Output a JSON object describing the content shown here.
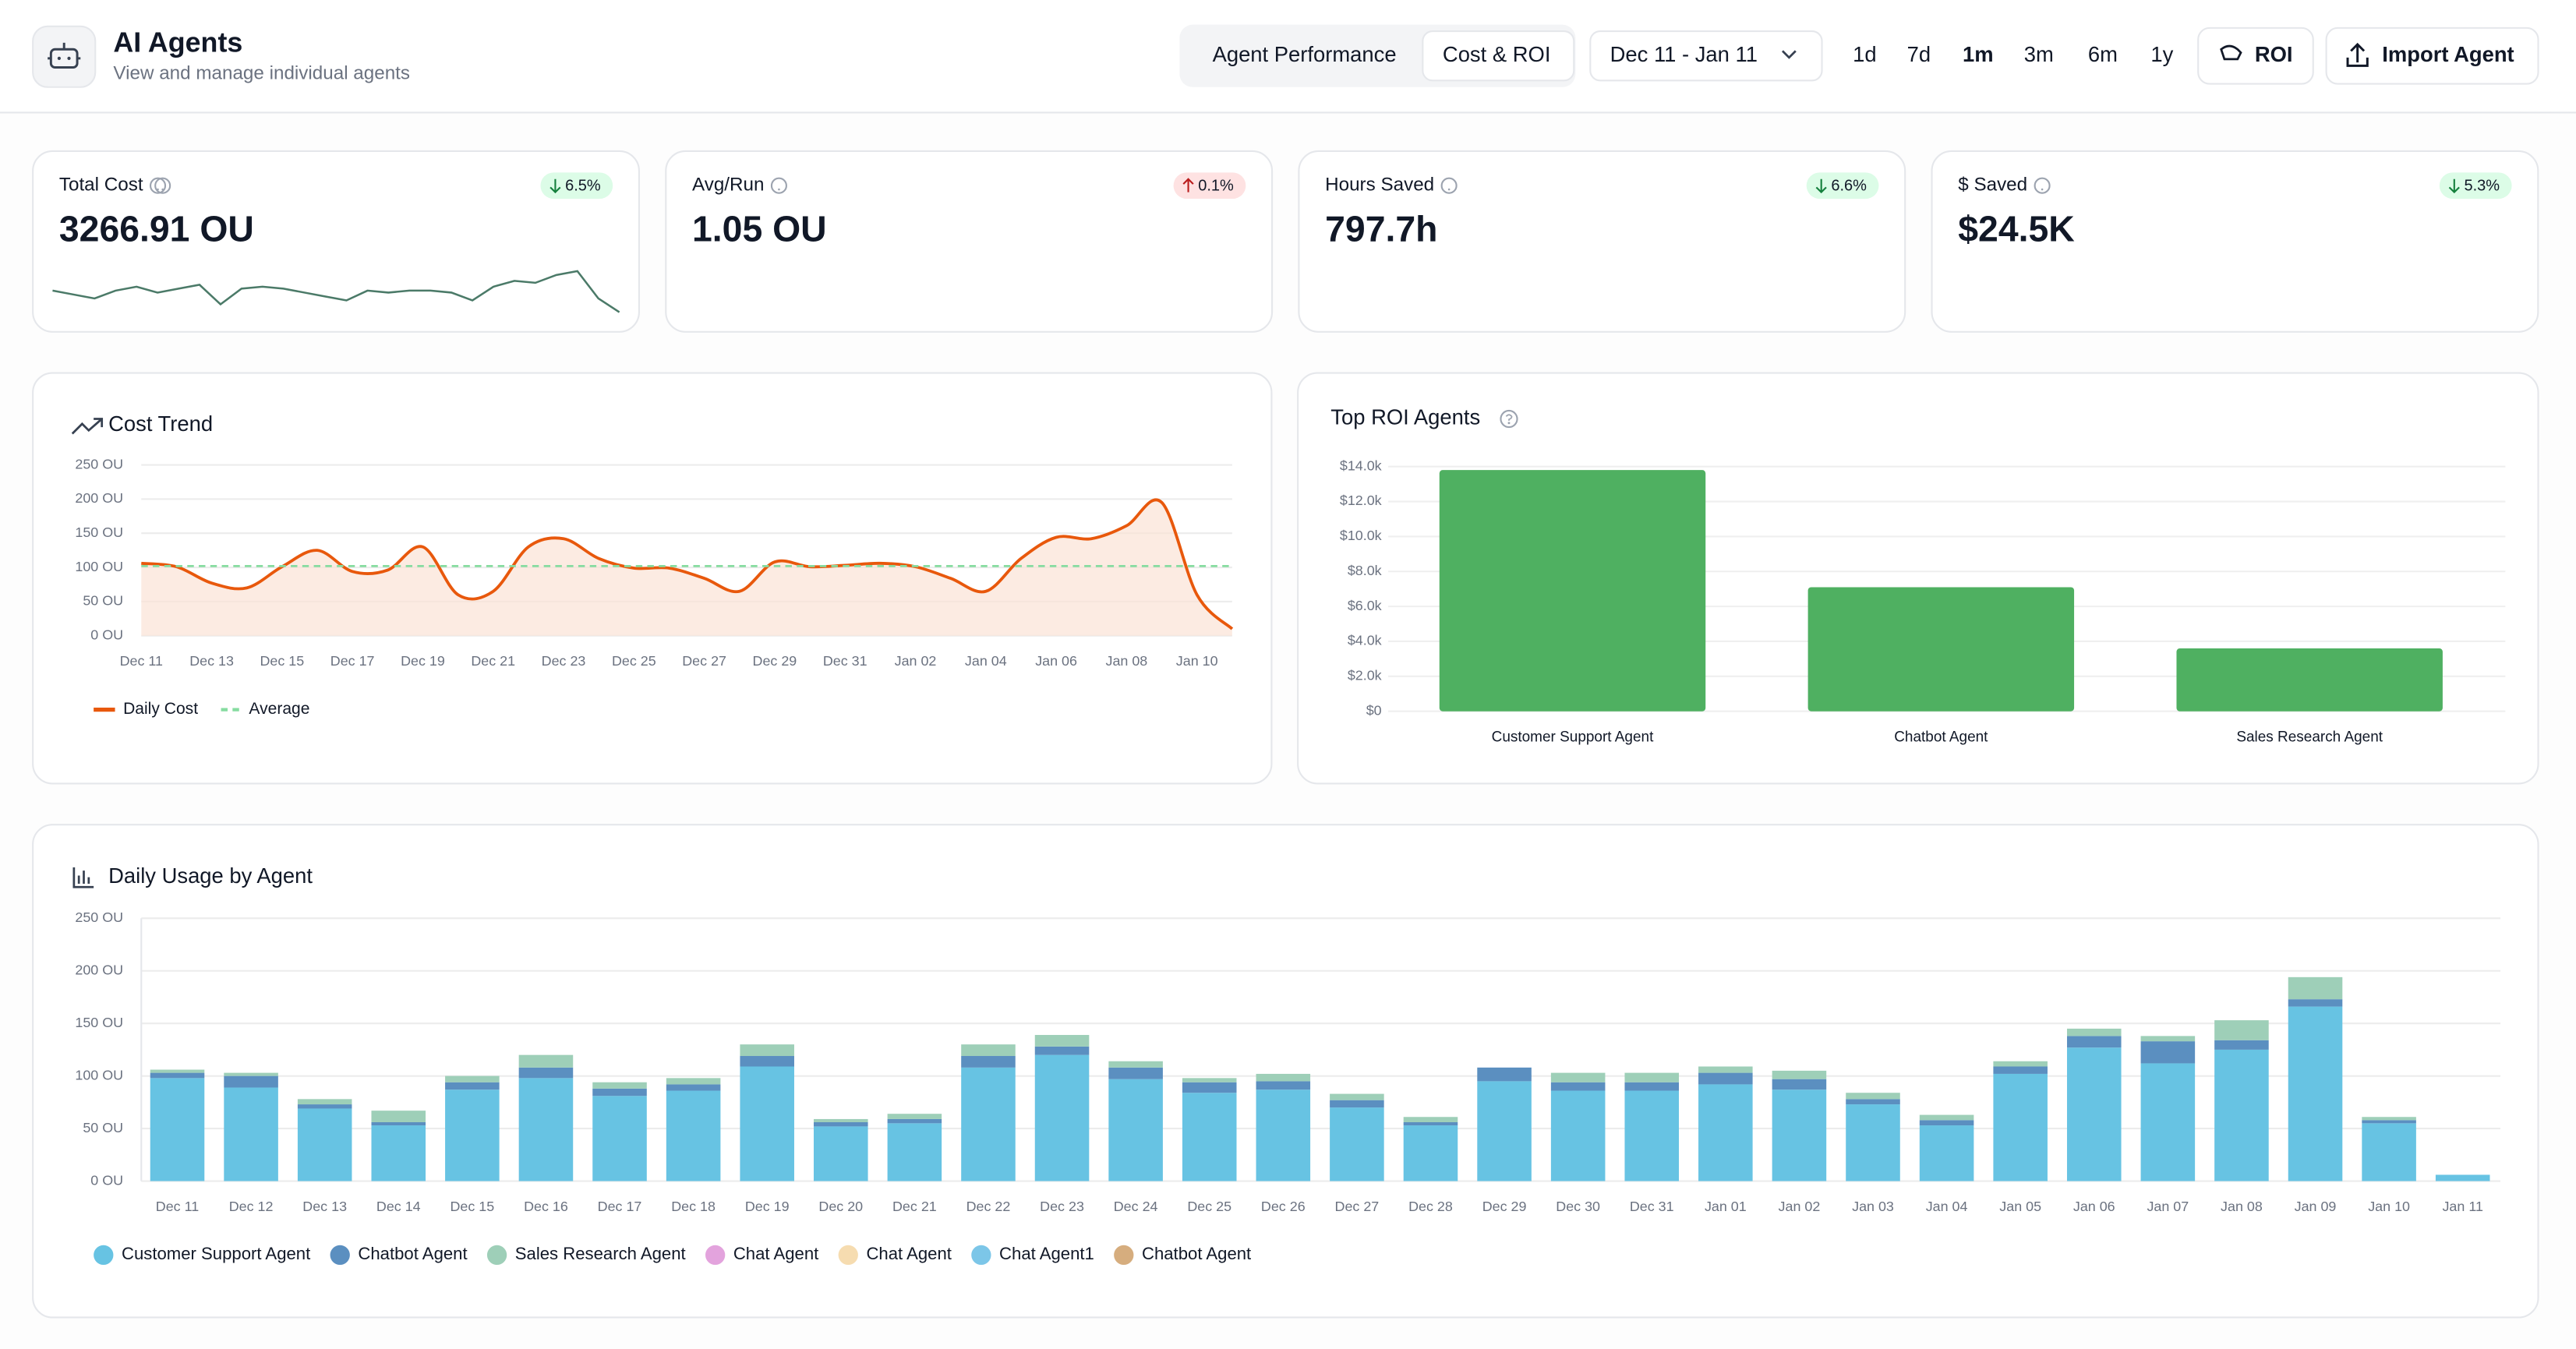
{
  "header": {
    "title": "AI Agents",
    "subtitle": "View and manage individual agents",
    "tabs": [
      "Agent Performance",
      "Cost & ROI"
    ],
    "active_tab_index": 1,
    "date_range": "Dec 11 - Jan 11",
    "ranges": [
      "1d",
      "7d",
      "1m",
      "3m",
      "6m",
      "1y"
    ],
    "active_range_index": 2,
    "buttons": [
      "ROI",
      "Import Agent"
    ]
  },
  "kpis": [
    {
      "label": "Total Cost",
      "value": "3266.91 OU",
      "change": "6.5%",
      "direction": "down"
    },
    {
      "label": "Avg/Run",
      "value": "1.05 OU",
      "change": "0.1%",
      "direction": "up"
    },
    {
      "label": "Hours Saved",
      "value": "797.7h",
      "change": "6.6%",
      "direction": "down"
    },
    {
      "label": "$ Saved",
      "value": "$24.5K",
      "change": "5.3%",
      "direction": "down"
    }
  ],
  "chart_data": [
    {
      "type": "sparkline",
      "color": "#4b7a68",
      "values": [
        14,
        12,
        10,
        14,
        16,
        13,
        15,
        17,
        7,
        15,
        16,
        15,
        13,
        11,
        9,
        14,
        13,
        14,
        14,
        13,
        9,
        16,
        19,
        18,
        22,
        24,
        10,
        3
      ]
    },
    {
      "type": "line",
      "title": "Cost Trend",
      "categories": [
        "Dec 11",
        null,
        "Dec 13",
        null,
        "Dec 15",
        null,
        "Dec 17",
        null,
        "Dec 19",
        null,
        "Dec 21",
        null,
        "Dec 23",
        null,
        "Dec 25",
        null,
        "Dec 27",
        null,
        "Dec 29",
        null,
        "Dec 31",
        null,
        "Jan 02",
        null,
        "Jan 04",
        null,
        "Jan 06",
        null,
        "Jan 08",
        null,
        "Jan 10",
        null
      ],
      "series": [
        {
          "name": "Daily Cost",
          "color": "#e8580c",
          "values": [
            106,
            101,
            77,
            70,
            101,
            125,
            94,
            96,
            130,
            60,
            65,
            130,
            142,
            113,
            99,
            99,
            84,
            65,
            108,
            101,
            103,
            106,
            101,
            84,
            65,
            113,
            144,
            142,
            161,
            195,
            60,
            10
          ]
        }
      ],
      "reference_lines": [
        {
          "name": "Average",
          "color": "#86dca0",
          "value": 102
        }
      ],
      "ylim": [
        0,
        250
      ],
      "yticks": [
        {
          "value": 0,
          "label": "0 OU"
        },
        {
          "value": 50,
          "label": "50 OU"
        },
        {
          "value": 100,
          "label": "100 OU"
        },
        {
          "value": 150,
          "label": "150 OU"
        },
        {
          "value": 200,
          "label": "200 OU"
        },
        {
          "value": 250,
          "label": "250 OU"
        }
      ],
      "grid": true,
      "area_fill": "#fbe3d6"
    },
    {
      "type": "bar",
      "title": "Top ROI Agents",
      "categories": [
        "Customer Support Agent",
        "Chatbot Agent",
        "Sales Research Agent"
      ],
      "values": [
        13800,
        7100,
        3600
      ],
      "color": "#4fb061",
      "ylim": [
        0,
        14000
      ],
      "yticks": [
        {
          "value": 0,
          "label": "$0"
        },
        {
          "value": 2000,
          "label": "$2.0k"
        },
        {
          "value": 4000,
          "label": "$4.0k"
        },
        {
          "value": 6000,
          "label": "$6.0k"
        },
        {
          "value": 8000,
          "label": "$8.0k"
        },
        {
          "value": 10000,
          "label": "$10.0k"
        },
        {
          "value": 12000,
          "label": "$12.0k"
        },
        {
          "value": 14000,
          "label": "$14.0k"
        }
      ],
      "grid": true
    },
    {
      "type": "stacked_bar",
      "title": "Daily Usage by Agent",
      "categories": [
        "Dec 11",
        "Dec 12",
        "Dec 13",
        "Dec 14",
        "Dec 15",
        "Dec 16",
        "Dec 17",
        "Dec 18",
        "Dec 19",
        "Dec 20",
        "Dec 21",
        "Dec 22",
        "Dec 23",
        "Dec 24",
        "Dec 25",
        "Dec 26",
        "Dec 27",
        "Dec 28",
        "Dec 29",
        "Dec 30",
        "Dec 31",
        "Jan 01",
        "Jan 02",
        "Jan 03",
        "Jan 04",
        "Jan 05",
        "Jan 06",
        "Jan 07",
        "Jan 08",
        "Jan 09",
        "Jan 10",
        "Jan 11"
      ],
      "series": [
        {
          "name": "Customer Support Agent",
          "color": "#67c3e3",
          "values": [
            98,
            89,
            69,
            53,
            87,
            98,
            81,
            86,
            109,
            52,
            55,
            108,
            120,
            97,
            84,
            87,
            70,
            53,
            95,
            86,
            86,
            92,
            87,
            73,
            53,
            102,
            127,
            112,
            125,
            166,
            55,
            6
          ]
        },
        {
          "name": "Chatbot Agent",
          "color": "#5b8fc0",
          "values": [
            5,
            11,
            4,
            3,
            7,
            10,
            7,
            6,
            10,
            4,
            4,
            11,
            8,
            11,
            10,
            8,
            7,
            3,
            13,
            8,
            8,
            11,
            10,
            5,
            5,
            7,
            11,
            21,
            9,
            7,
            3,
            0
          ]
        },
        {
          "name": "Sales Research Agent",
          "color": "#9ecfb8",
          "values": [
            3,
            3,
            5,
            11,
            6,
            12,
            6,
            6,
            11,
            3,
            5,
            11,
            11,
            6,
            4,
            7,
            6,
            5,
            0,
            9,
            9,
            6,
            8,
            6,
            5,
            5,
            7,
            5,
            19,
            21,
            3,
            0
          ]
        },
        {
          "name": "Chat Agent",
          "color": "#e3a3dd",
          "values": [
            0,
            0,
            0,
            0,
            0,
            0,
            0,
            0,
            0,
            0,
            0,
            0,
            0,
            0,
            0,
            0,
            0,
            0,
            0,
            0,
            0,
            0,
            0,
            0,
            0,
            0,
            0,
            0,
            0,
            0,
            0,
            0
          ]
        },
        {
          "name": "Chat Agent",
          "color": "#f6dcb0",
          "values": [
            0,
            0,
            0,
            0,
            0,
            0,
            0,
            0,
            0,
            0,
            0,
            0,
            0,
            0,
            0,
            0,
            0,
            0,
            0,
            0,
            0,
            0,
            0,
            0,
            0,
            0,
            0,
            0,
            0,
            0,
            0,
            0
          ]
        },
        {
          "name": "Chat Agent1",
          "color": "#7cc6e8",
          "values": [
            0,
            0,
            0,
            0,
            0,
            0,
            0,
            0,
            0,
            0,
            0,
            0,
            0,
            0,
            0,
            0,
            0,
            0,
            0,
            0,
            0,
            0,
            0,
            0,
            0,
            0,
            0,
            0,
            0,
            0,
            0,
            0
          ]
        },
        {
          "name": "Chatbot Agent",
          "color": "#d6ad7e",
          "values": [
            0,
            0,
            0,
            0,
            0,
            0,
            0,
            0,
            0,
            0,
            0,
            0,
            0,
            0,
            0,
            0,
            0,
            0,
            0,
            0,
            0,
            0,
            0,
            0,
            0,
            0,
            0,
            0,
            0,
            0,
            0,
            0
          ]
        }
      ],
      "ylim": [
        0,
        250
      ],
      "yticks": [
        {
          "value": 0,
          "label": "0 OU"
        },
        {
          "value": 50,
          "label": "50 OU"
        },
        {
          "value": 100,
          "label": "100 OU"
        },
        {
          "value": 150,
          "label": "150 OU"
        },
        {
          "value": 200,
          "label": "200 OU"
        },
        {
          "value": 250,
          "label": "250 OU"
        }
      ],
      "grid": true
    }
  ]
}
